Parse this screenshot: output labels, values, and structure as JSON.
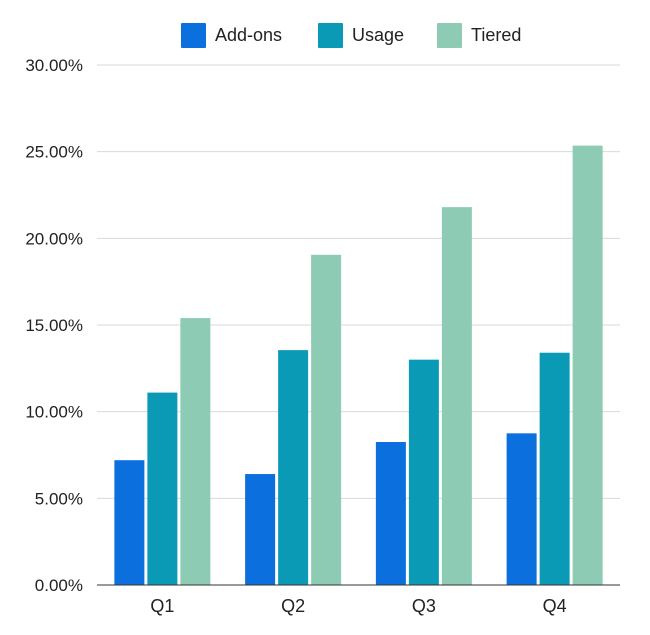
{
  "chart_data": {
    "type": "bar",
    "categories": [
      "Q1",
      "Q2",
      "Q3",
      "Q4"
    ],
    "series": [
      {
        "name": "Add-ons",
        "color": "#0B6FDE",
        "values": [
          7.2,
          6.4,
          8.25,
          8.75
        ]
      },
      {
        "name": "Usage",
        "color": "#0A9AB5",
        "values": [
          11.1,
          13.55,
          13.0,
          13.4
        ]
      },
      {
        "name": "Tiered",
        "color": "#8ECBB4",
        "values": [
          15.4,
          19.05,
          21.8,
          25.35
        ]
      }
    ],
    "ylim": [
      0,
      30
    ],
    "yticks": [
      0,
      5,
      10,
      15,
      20,
      25,
      30
    ],
    "ytick_labels": [
      "0.00%",
      "5.00%",
      "10.00%",
      "15.00%",
      "20.00%",
      "25.00%",
      "30.00%"
    ],
    "title": "",
    "xlabel": "",
    "ylabel": "",
    "grid": true,
    "legend_position": "top"
  }
}
